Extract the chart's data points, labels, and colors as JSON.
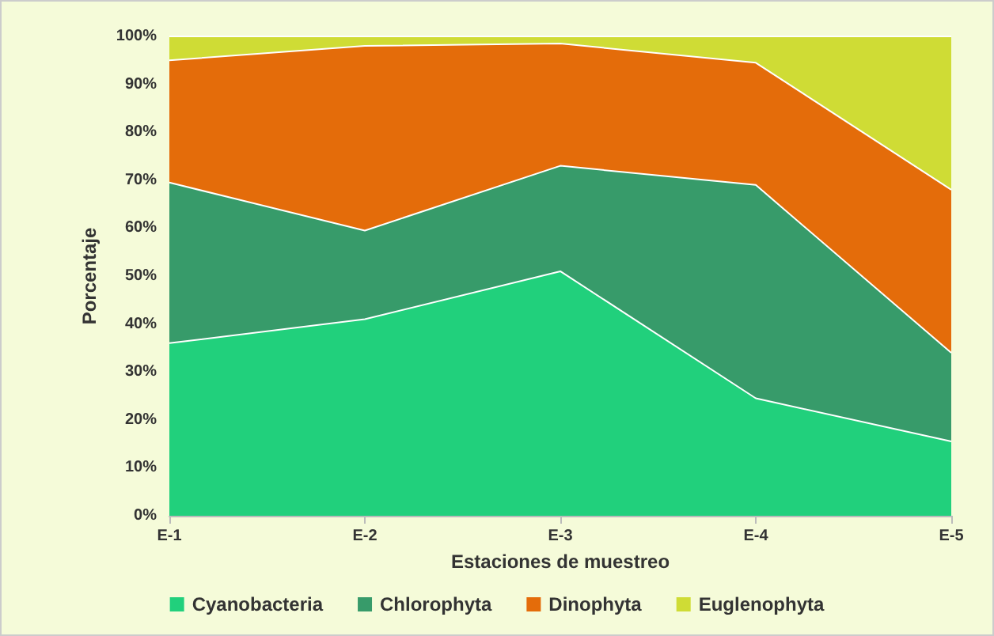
{
  "chart_data": {
    "type": "area",
    "stacked": true,
    "xlabel": "Estaciones de muestreo",
    "ylabel": "Porcentaje",
    "categories": [
      "E-1",
      "E-2",
      "E-3",
      "E-4",
      "E-5"
    ],
    "series": [
      {
        "name": "Cyanobacteria",
        "color": "#21d07c",
        "values": [
          36,
          41,
          51,
          24.5,
          15.5
        ]
      },
      {
        "name": "Chlorophyta",
        "color": "#379b6a",
        "values": [
          33.5,
          18.5,
          22,
          44.5,
          18.5
        ]
      },
      {
        "name": "Dinophyta",
        "color": "#e46c0a",
        "values": [
          25.5,
          38.5,
          25.5,
          25.5,
          34
        ]
      },
      {
        "name": "Euglenophyta",
        "color": "#cfdc35",
        "values": [
          5,
          2,
          1.5,
          5.5,
          32
        ]
      }
    ],
    "ylim": [
      0,
      100
    ],
    "yticks": [
      {
        "value": 0,
        "label": "0%"
      },
      {
        "value": 10,
        "label": "10%"
      },
      {
        "value": 20,
        "label": "20%"
      },
      {
        "value": 30,
        "label": "30%"
      },
      {
        "value": 40,
        "label": "40%"
      },
      {
        "value": 50,
        "label": "50%"
      },
      {
        "value": 60,
        "label": "60%"
      },
      {
        "value": 70,
        "label": "70%"
      },
      {
        "value": 80,
        "label": "80%"
      },
      {
        "value": 90,
        "label": "90%"
      },
      {
        "value": 100,
        "label": "100%"
      }
    ],
    "grid": false,
    "legend": "bottom"
  }
}
